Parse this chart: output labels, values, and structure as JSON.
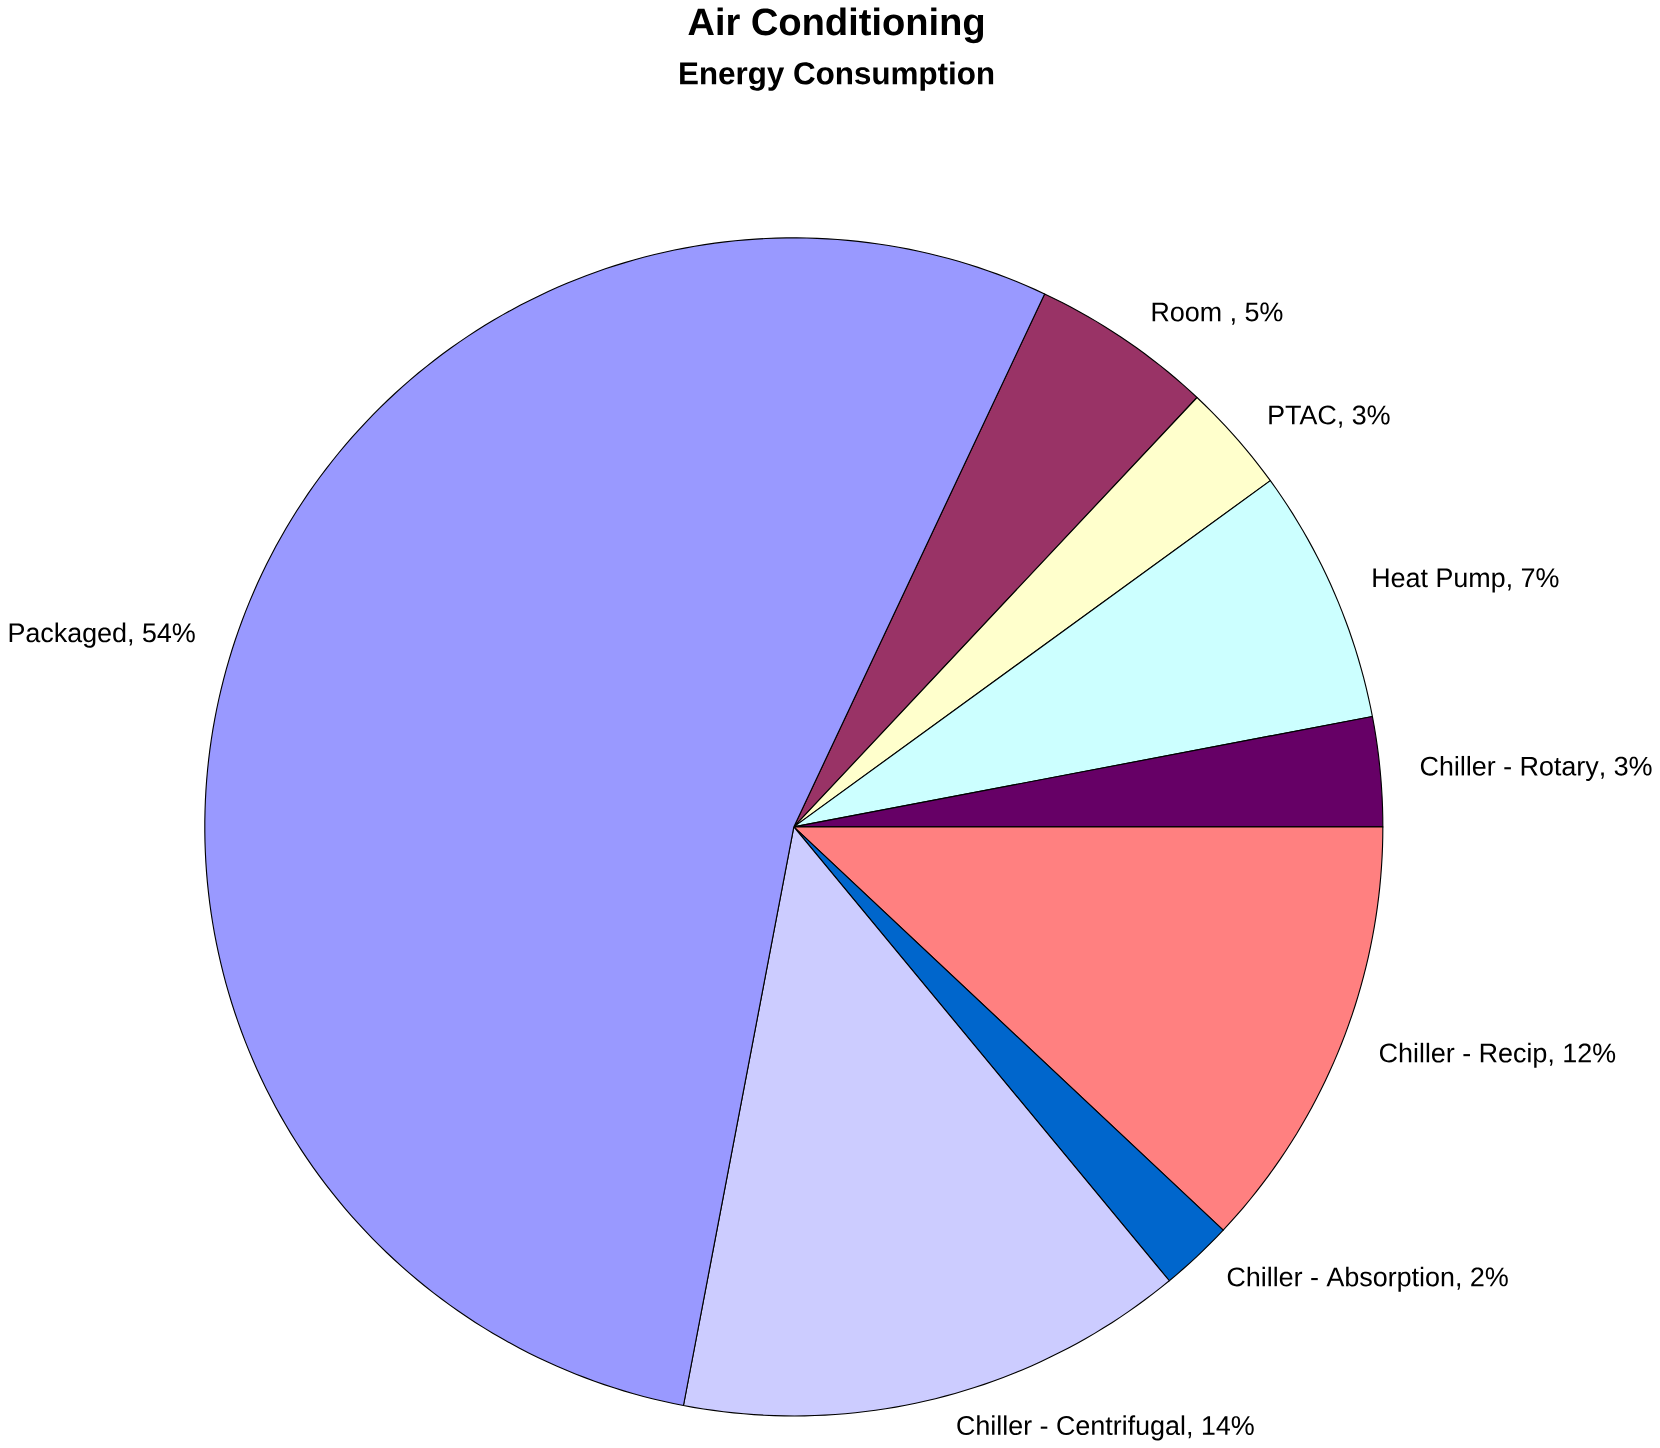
{
  "chart_data": {
    "type": "pie",
    "title": "Air Conditioning",
    "subtitle": "Energy Consumption",
    "categories": [
      "Room ",
      "PTAC",
      "Heat Pump",
      "Chiller - Rotary",
      "Chiller - Recip",
      "Chiller - Absorption",
      "Chiller - Centrifugal",
      "Packaged"
    ],
    "values": [
      5,
      3,
      7,
      3,
      12,
      2,
      14,
      54
    ],
    "value_labels": [
      ", 5%",
      ", 3%",
      ", 7%",
      ", 3%",
      ", 12%",
      ", 2%",
      ", 14%",
      ", 54%"
    ],
    "colors": [
      "#993366",
      "#ffffcc",
      "#ccffff",
      "#660066",
      "#ff8080",
      "#0066cc",
      "#ccccff",
      "#9999ff"
    ]
  }
}
